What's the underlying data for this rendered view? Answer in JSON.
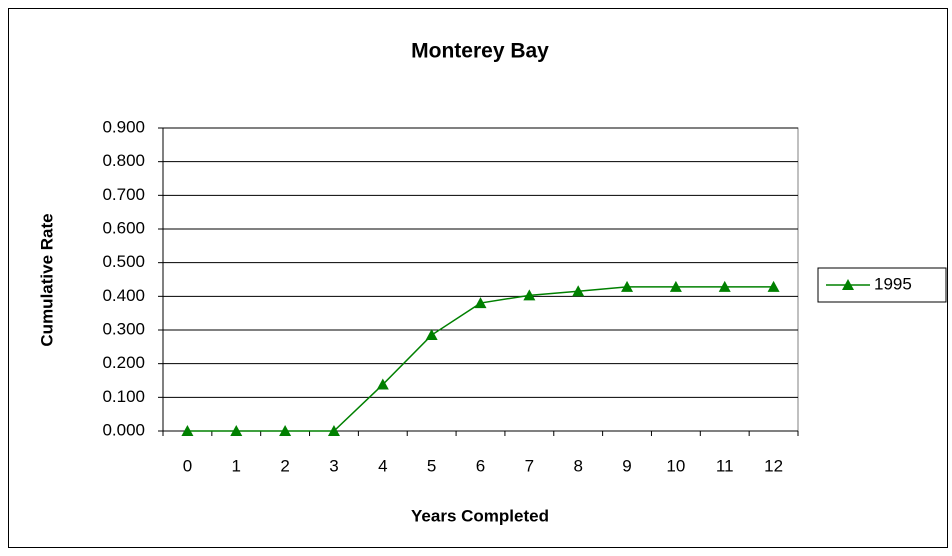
{
  "chart_data": {
    "type": "line",
    "title": "Monterey Bay",
    "x_label": "Years Completed",
    "y_label": "Cumulative Rate",
    "categories": [
      "0",
      "1",
      "2",
      "3",
      "4",
      "5",
      "6",
      "7",
      "8",
      "9",
      "10",
      "11",
      "12"
    ],
    "series": [
      {
        "name": "1995",
        "color": "#008000",
        "values": [
          0,
          0,
          0,
          0,
          0.138,
          0.285,
          0.38,
          0.403,
          0.415,
          0.428,
          0.428,
          0.428,
          0.428
        ]
      }
    ],
    "ylim": [
      0,
      0.9
    ],
    "yticks": [
      {
        "value": 0,
        "label": "0.000"
      },
      {
        "value": 0.1,
        "label": "0.100"
      },
      {
        "value": 0.2,
        "label": "0.200"
      },
      {
        "value": 0.3,
        "label": "0.300"
      },
      {
        "value": 0.4,
        "label": "0.400"
      },
      {
        "value": 0.5,
        "label": "0.500"
      },
      {
        "value": 0.6,
        "label": "0.600"
      },
      {
        "value": 0.7,
        "label": "0.700"
      },
      {
        "value": 0.8,
        "label": "0.800"
      },
      {
        "value": 0.9,
        "label": "0.900"
      }
    ],
    "grid": true,
    "legend": "right"
  }
}
